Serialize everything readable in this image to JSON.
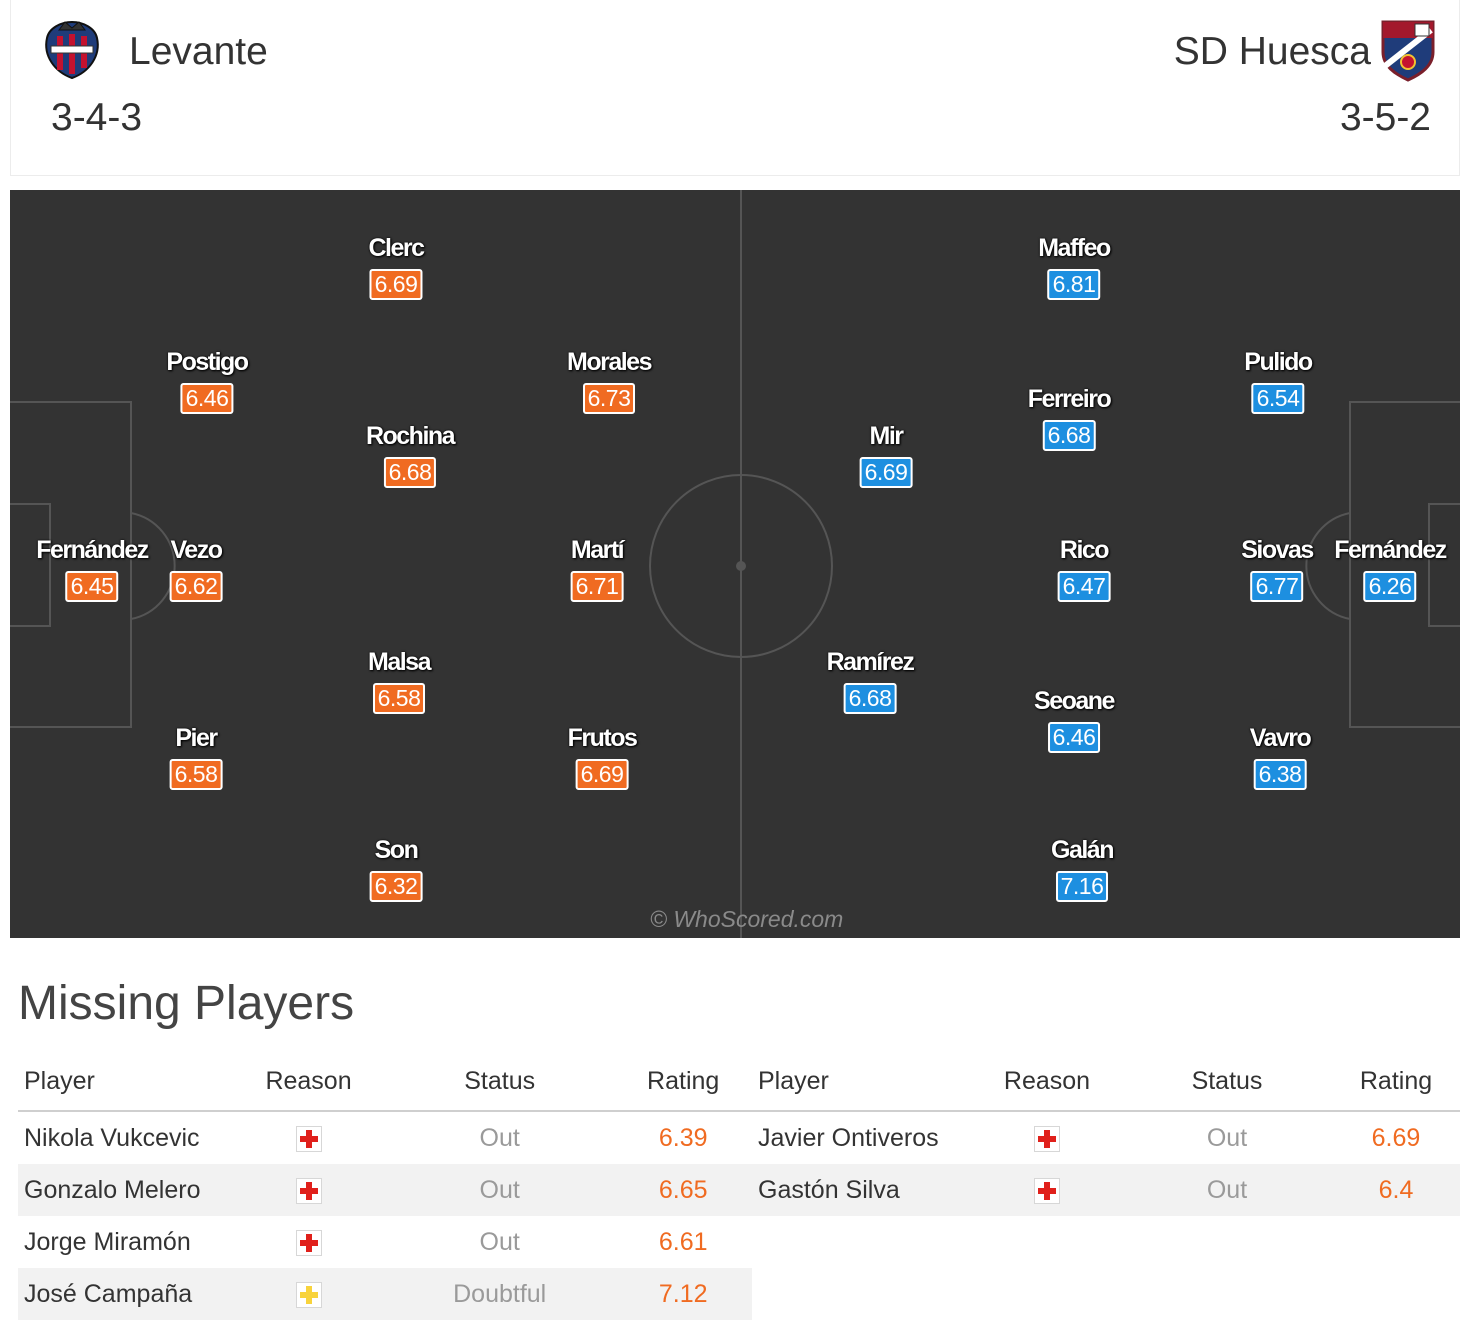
{
  "header": {
    "home": {
      "name": "Levante",
      "formation": "3-4-3",
      "crest_icon": "levante-crest-icon"
    },
    "away": {
      "name": "SD Huesca",
      "formation": "3-5-2",
      "crest_icon": "huesca-crest-icon"
    }
  },
  "colors": {
    "home_rating": "#f06b21",
    "away_rating": "#1d8fe0",
    "pitch": "#333333",
    "injury": "#e0201b",
    "doubtful": "#f8d33c"
  },
  "pitch": {
    "watermark": "© WhoScored.com",
    "home_players": [
      {
        "name": "Clerc",
        "rating": "6.69"
      },
      {
        "name": "Postigo",
        "rating": "6.46"
      },
      {
        "name": "Morales",
        "rating": "6.73"
      },
      {
        "name": "Rochina",
        "rating": "6.68"
      },
      {
        "name": "Fernández",
        "rating": "6.45"
      },
      {
        "name": "Vezo",
        "rating": "6.62"
      },
      {
        "name": "Martí",
        "rating": "6.71"
      },
      {
        "name": "Malsa",
        "rating": "6.58"
      },
      {
        "name": "Pier",
        "rating": "6.58"
      },
      {
        "name": "Frutos",
        "rating": "6.69"
      },
      {
        "name": "Son",
        "rating": "6.32"
      }
    ],
    "away_players": [
      {
        "name": "Maffeo",
        "rating": "6.81"
      },
      {
        "name": "Pulido",
        "rating": "6.54"
      },
      {
        "name": "Ferreiro",
        "rating": "6.68"
      },
      {
        "name": "Mir",
        "rating": "6.69"
      },
      {
        "name": "Rico",
        "rating": "6.47"
      },
      {
        "name": "Siovas",
        "rating": "6.77"
      },
      {
        "name": "Fernández",
        "rating": "6.26"
      },
      {
        "name": "Ramírez",
        "rating": "6.68"
      },
      {
        "name": "Seoane",
        "rating": "6.46"
      },
      {
        "name": "Vavro",
        "rating": "6.38"
      },
      {
        "name": "Galán",
        "rating": "7.16"
      }
    ]
  },
  "missing": {
    "title": "Missing Players",
    "columns": {
      "player": "Player",
      "reason": "Reason",
      "status": "Status",
      "rating": "Rating"
    },
    "home": [
      {
        "player": "Nikola Vukcevic",
        "reason": "injury",
        "status": "Out",
        "rating": "6.39"
      },
      {
        "player": "Gonzalo Melero",
        "reason": "injury",
        "status": "Out",
        "rating": "6.65"
      },
      {
        "player": "Jorge Miramón",
        "reason": "injury",
        "status": "Out",
        "rating": "6.61"
      },
      {
        "player": "José Campaña",
        "reason": "doubtful",
        "status": "Doubtful",
        "rating": "7.12"
      }
    ],
    "away": [
      {
        "player": "Javier Ontiveros",
        "reason": "injury",
        "status": "Out",
        "rating": "6.69"
      },
      {
        "player": "Gastón Silva",
        "reason": "injury",
        "status": "Out",
        "rating": "6.4"
      }
    ]
  }
}
